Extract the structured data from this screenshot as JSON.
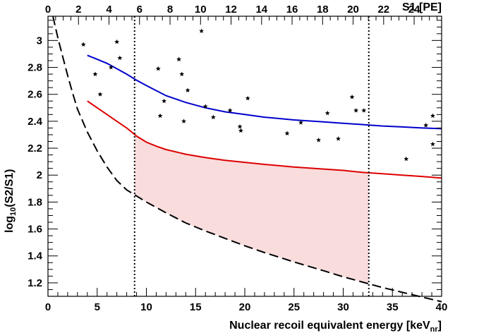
{
  "chart_data": {
    "type": "scatter",
    "title": "",
    "xlabel": "Nuclear recoil equivalent energy [keV",
    "xlabel_sub": "nr",
    "xlabel_end": "]",
    "ylabel_prefix": "log",
    "ylabel_sub": "10",
    "ylabel_rest": "(S2/S1)",
    "x2label": "S1 [PE]",
    "xlim": [
      0,
      40
    ],
    "ylim": [
      1.1,
      3.18
    ],
    "x2lim": [
      0,
      25.8
    ],
    "xticks_major": [
      0,
      5,
      10,
      15,
      20,
      25,
      30,
      35,
      40
    ],
    "yticks_major": [
      1.2,
      1.4,
      1.6,
      1.8,
      2,
      2.2,
      2.4,
      2.6,
      2.8,
      3
    ],
    "ytick_labels": [
      "1.2",
      "1.4",
      "1.6",
      "1.8",
      "2",
      "2.2",
      "2.4",
      "2.6",
      "2.8",
      "3"
    ],
    "x2ticks_major": [
      0,
      2,
      4,
      6,
      8,
      10,
      12,
      14,
      16,
      18,
      20,
      22,
      24
    ],
    "grid": false,
    "events": {
      "x": [
        3.6,
        4.8,
        5.3,
        6.4,
        7.0,
        7.3,
        11.2,
        11.4,
        11.8,
        13.3,
        13.6,
        13.8,
        14.2,
        15.6,
        16.0,
        16.8,
        18.5,
        19.5,
        19.6,
        20.3,
        24.3,
        25.7,
        27.5,
        28.4,
        29.5,
        30.9,
        31.3,
        32.1,
        36.4,
        38.4,
        39.1,
        39.1
      ],
      "y": [
        2.97,
        2.75,
        2.6,
        2.8,
        2.99,
        2.87,
        2.79,
        2.44,
        2.55,
        2.86,
        2.75,
        2.4,
        2.63,
        3.07,
        2.51,
        2.43,
        2.48,
        2.36,
        2.33,
        2.57,
        2.31,
        2.39,
        2.26,
        2.46,
        2.27,
        2.58,
        2.48,
        2.48,
        2.12,
        2.37,
        2.44,
        2.23
      ]
    },
    "series": [
      {
        "color": "#0000cc",
        "x": [
          4.0,
          5,
          6,
          7,
          8,
          9,
          10,
          12,
          14,
          16,
          18,
          20,
          22,
          25,
          28,
          30,
          32,
          34,
          36,
          38,
          40
        ],
        "y": [
          2.89,
          2.86,
          2.83,
          2.79,
          2.75,
          2.705,
          2.665,
          2.59,
          2.54,
          2.5,
          2.47,
          2.45,
          2.43,
          2.41,
          2.395,
          2.385,
          2.375,
          2.365,
          2.358,
          2.35,
          2.345
        ]
      },
      {
        "color": "#dd0000",
        "x": [
          4.0,
          5,
          6,
          7,
          8,
          9,
          10,
          11,
          12,
          14,
          16,
          18,
          20,
          22,
          25,
          28,
          30,
          32,
          34,
          36,
          38,
          40
        ],
        "y": [
          2.55,
          2.5,
          2.45,
          2.4,
          2.35,
          2.29,
          2.245,
          2.215,
          2.19,
          2.155,
          2.13,
          2.11,
          2.095,
          2.08,
          2.06,
          2.045,
          2.035,
          2.02,
          2.01,
          2.0,
          1.99,
          1.978
        ]
      },
      {
        "color": "#000000",
        "dashed": true,
        "x": [
          0.5,
          1,
          1.5,
          2,
          2.5,
          3,
          4,
          5,
          6,
          7,
          8,
          9,
          10,
          12,
          14,
          16,
          18,
          20,
          22,
          25,
          28,
          30,
          32,
          34,
          36,
          38,
          40
        ],
        "y": [
          3.18,
          3.02,
          2.88,
          2.74,
          2.61,
          2.49,
          2.32,
          2.18,
          2.06,
          1.96,
          1.89,
          1.845,
          1.8,
          1.72,
          1.645,
          1.585,
          1.53,
          1.475,
          1.425,
          1.355,
          1.29,
          1.245,
          1.205,
          1.165,
          1.13,
          1.095,
          1.06
        ]
      }
    ],
    "vertical_lines": [
      8.8,
      32.6
    ],
    "shaded_region": {
      "color": "#f9dcdc",
      "x_from": 8.8,
      "x_to": 32.6
    }
  }
}
